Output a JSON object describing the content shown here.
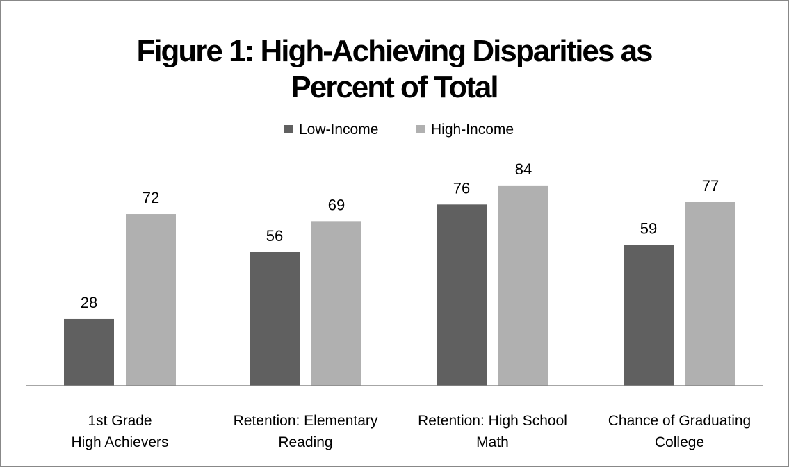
{
  "chart_data": {
    "type": "bar",
    "title_lines": [
      "Figure 1: High-Achieving Disparities as",
      "Percent of Total"
    ],
    "categories": [
      [
        "1st Grade",
        "High Achievers"
      ],
      [
        "Retention: Elementary",
        "Reading"
      ],
      [
        "Retention: High School",
        "Math"
      ],
      [
        "Chance of Graduating",
        "College"
      ]
    ],
    "series": [
      {
        "name": "Low-Income",
        "color": "#606060",
        "values": [
          28,
          56,
          76,
          59
        ]
      },
      {
        "name": "High-Income",
        "color": "#b0b0b0",
        "values": [
          72,
          69,
          84,
          77
        ]
      }
    ],
    "ylim": [
      0,
      100
    ],
    "grid": false,
    "legend_position": "top-center",
    "data_labels": true,
    "xlabel": "",
    "ylabel": ""
  }
}
